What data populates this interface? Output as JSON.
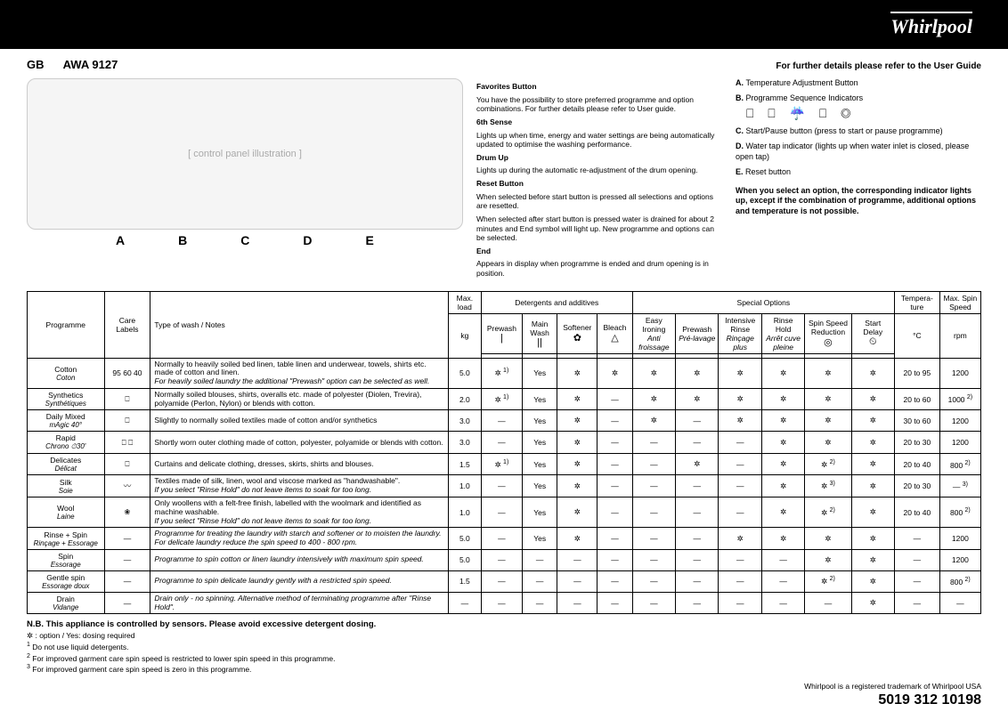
{
  "brand": "Whirlpool",
  "header": {
    "gb": "GB",
    "model": "AWA 9127",
    "refer": "For further details please refer to the User Guide"
  },
  "letters": [
    "A",
    "B",
    "C",
    "D",
    "E"
  ],
  "panel_placeholder": "[ control panel illustration ]",
  "desc_left": {
    "fav_t": "Favorites Button",
    "fav_p": "You have the possibility to store preferred programme and option combinations. For further details please refer to User guide.",
    "sense_t": "6th Sense",
    "sense_p": "Lights up when time, energy and water settings are being automatically updated to optimise the washing performance.",
    "drum_t": "Drum Up",
    "drum_p": "Lights up during the automatic re-adjustment of the drum opening.",
    "reset_t": "Reset Button",
    "reset_p1": "When selected before start button is pressed all selections and options are resetted.",
    "reset_p2": "When selected after start button is pressed water is drained for about 2 minutes and End symbol will light up. New programme and options can be selected.",
    "end_t": "End",
    "end_p": "Appears in display when programme is ended and drum opening is in position."
  },
  "legend": {
    "a": "Temperature Adjustment Button",
    "b": "Programme Sequence Indicators",
    "c": "Start/Pause button (press to start or pause programme)",
    "d": "Water tap indicator (lights up when water inlet is closed, please open tap)",
    "e": "Reset button",
    "option_note": "When you select an option, the corresponding indicator lights up, except if the combination of programme, additional options and temperature is not possible.",
    "psi_icons": "⎕ ⎕ ☔ ⎕ ◎"
  },
  "table": {
    "headers": {
      "programme": "Programme",
      "care": "Care Labels",
      "type": "Type of wash / Notes",
      "maxload": "Max. load",
      "detergents": "Detergents and additives",
      "special": "Special Options",
      "temp": "Tempera-ture",
      "maxspin": "Max. Spin Speed",
      "det_cols": [
        "Prewash",
        "Main Wash",
        "Softener",
        "Bleach"
      ],
      "opt_cols": [
        "Easy Ironing",
        "Prewash",
        "Intensive Rinse",
        "Rinse Hold",
        "Spin Speed Reduction",
        "Start Delay"
      ],
      "det_subs_it": [
        "",
        "",
        "",
        ""
      ],
      "opt_subs_it": [
        "Anti froissage",
        "Pré-lavage",
        "Rinçage plus",
        "Arrêt cuve pleine",
        "",
        ""
      ],
      "det_icons": [
        "|",
        "||",
        "✿",
        "△"
      ],
      "opt_icons": [
        "",
        "",
        "",
        "",
        "◎",
        "⏲"
      ],
      "units": {
        "kg": "kg",
        "c": "°C",
        "rpm": "rpm"
      }
    },
    "rows": [
      {
        "name": "Cotton",
        "sub": "Coton",
        "care": "95 60 40",
        "notes": "Normally to heavily soiled bed linen, table linen and underwear, towels, shirts etc. made of cotton and linen.",
        "notes_em": "For heavily soiled laundry the additional \"Prewash\" option can be selected as well.",
        "max": "5.0",
        "det": [
          "✲ 1)",
          "Yes",
          "✲",
          "✲"
        ],
        "opt": [
          "✲",
          "✲",
          "✲",
          "✲",
          "✲",
          "✲"
        ],
        "temp": "20 to 95",
        "spin": "1200"
      },
      {
        "name": "Synthetics",
        "sub": "Synthétiques",
        "care": "⎕",
        "notes": "Normally soiled blouses, shirts, overalls etc. made of polyester (Diolen, Trevira), polyamide (Perlon, Nylon) or blends with cotton.",
        "max": "2.0",
        "det": [
          "✲ 1)",
          "Yes",
          "✲",
          "—"
        ],
        "opt": [
          "✲",
          "✲",
          "✲",
          "✲",
          "✲",
          "✲"
        ],
        "temp": "20 to 60",
        "spin": "1000 2)"
      },
      {
        "name": "Daily Mixed",
        "sub": "mAgic 40°",
        "care": "⎕",
        "notes": "Slightly to normally soiled textiles made of cotton and/or synthetics",
        "max": "3.0",
        "det": [
          "—",
          "Yes",
          "✲",
          "—"
        ],
        "opt": [
          "✲",
          "—",
          "✲",
          "✲",
          "✲",
          "✲"
        ],
        "temp": "30 to 60",
        "spin": "1200"
      },
      {
        "name": "Rapid",
        "sub": "Chrono   ⏱30'",
        "care": "⎕ ⎕",
        "notes": "Shortly worn outer clothing made of cotton, polyester, polyamide or blends with cotton.",
        "max": "3.0",
        "det": [
          "—",
          "Yes",
          "✲",
          "—"
        ],
        "opt": [
          "—",
          "—",
          "—",
          "✲",
          "✲",
          "✲"
        ],
        "temp": "20 to 30",
        "spin": "1200"
      },
      {
        "name": "Delicates",
        "sub": "Délicat",
        "care": "⎕",
        "notes": "Curtains and delicate clothing, dresses, skirts, shirts and blouses.",
        "max": "1.5",
        "det": [
          "✲ 1)",
          "Yes",
          "✲",
          "—"
        ],
        "opt": [
          "—",
          "✲",
          "—",
          "✲",
          "✲ 2)",
          "✲"
        ],
        "temp": "20 to 40",
        "spin": "800 2)"
      },
      {
        "name": "Silk",
        "sub": "Soie",
        "care": "〰",
        "notes": "Textiles made of silk, linen, wool and viscose marked as \"handwashable\".",
        "notes_em": "If you select \"Rinse Hold\" do not leave items to soak for too long.",
        "max": "1.0",
        "det": [
          "—",
          "Yes",
          "✲",
          "—"
        ],
        "opt": [
          "—",
          "—",
          "—",
          "✲",
          "✲ 3)",
          "✲"
        ],
        "temp": "20 to 30",
        "spin": "— 3)"
      },
      {
        "name": "Wool",
        "sub": "Laine",
        "care": "❀",
        "notes": "Only woollens with a felt-free finish, labelled with the woolmark and identified as machine washable.",
        "notes_em": "If you select \"Rinse Hold\" do not leave items to soak for too long.",
        "max": "1.0",
        "det": [
          "—",
          "Yes",
          "✲",
          "—"
        ],
        "opt": [
          "—",
          "—",
          "—",
          "✲",
          "✲ 2)",
          "✲"
        ],
        "temp": "20 to 40",
        "spin": "800 2)"
      },
      {
        "name": "Rinse + Spin",
        "sub": "Rinçage + Essorage",
        "care": "—",
        "notes_em": "Programme for treating the laundry with starch and softener or to moisten the laundry. For delicate laundry reduce the spin speed to 400 - 800 rpm.",
        "max": "5.0",
        "det": [
          "—",
          "Yes",
          "✲",
          "—"
        ],
        "opt": [
          "—",
          "—",
          "✲",
          "✲",
          "✲",
          "✲"
        ],
        "temp": "—",
        "spin": "1200"
      },
      {
        "name": "Spin",
        "sub": "Essorage",
        "care": "—",
        "notes_em": "Programme to spin cotton or linen laundry intensively with maximum spin speed.",
        "max": "5.0",
        "det": [
          "—",
          "—",
          "—",
          "—"
        ],
        "opt": [
          "—",
          "—",
          "—",
          "—",
          "✲",
          "✲"
        ],
        "temp": "—",
        "spin": "1200"
      },
      {
        "name": "Gentle spin",
        "sub": "Essorage doux",
        "care": "—",
        "notes_em": "Programme to spin delicate laundry gently with a restricted spin speed.",
        "max": "1.5",
        "det": [
          "—",
          "—",
          "—",
          "—"
        ],
        "opt": [
          "—",
          "—",
          "—",
          "—",
          "✲ 2)",
          "✲"
        ],
        "temp": "—",
        "spin": "800 2)"
      },
      {
        "name": "Drain",
        "sub": "Vidange",
        "care": "—",
        "notes_em": "Drain only - no spinning. Alternative method of terminating programme after \"Rinse Hold\".",
        "max": "—",
        "det": [
          "—",
          "—",
          "—",
          "—"
        ],
        "opt": [
          "—",
          "—",
          "—",
          "—",
          "—",
          "✲"
        ],
        "temp": "—",
        "spin": "—"
      }
    ]
  },
  "footnotes": {
    "nb": "N.B. This appliance is controlled by sensors. Please avoid excessive detergent dosing.",
    "sym": "✲ : option / Yes: dosing required",
    "f1": "Do not use liquid detergents.",
    "f2": "For improved garment care spin speed is restricted to lower spin speed in this programme.",
    "f3": "For improved garment care spin speed is zero in this programme.",
    "tm": "Whirlpool is a registered trademark of Whirlpool USA",
    "partno": "5019 312 10198"
  }
}
